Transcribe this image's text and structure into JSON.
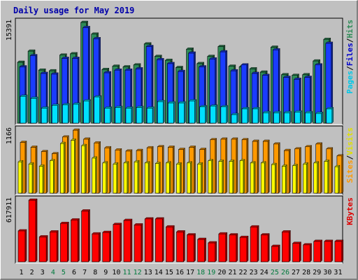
{
  "chart_data": {
    "type": "bar",
    "title": "Daily usage for May 2019",
    "days": [
      "1",
      "2",
      "3",
      "4",
      "5",
      "6",
      "7",
      "8",
      "9",
      "10",
      "11",
      "12",
      "13",
      "14",
      "15",
      "16",
      "17",
      "18",
      "19",
      "20",
      "21",
      "22",
      "23",
      "24",
      "25",
      "26",
      "27",
      "28",
      "29",
      "30",
      "31"
    ],
    "weekend_days": [
      "4",
      "5",
      "11",
      "12",
      "18",
      "19",
      "25",
      "26"
    ],
    "colors": {
      "title": "#0000aa",
      "hits": "#2e8b57",
      "files": "#1a3cff",
      "pages": "#00e0ff",
      "visits": "#ffff00",
      "sites": "#ff9900",
      "kbytes": "#ff0000",
      "weekend_label": "#007a3d",
      "weekday_label": "#000000"
    },
    "panels": [
      {
        "name": "hits-files-pages",
        "max_label": "15391",
        "ylim": [
          0,
          15391
        ],
        "legend": [
          {
            "text": "Pages",
            "color": "#00c8e8"
          },
          {
            "text": "/",
            "color": "#000000"
          },
          {
            "text": "Files",
            "color": "#0000cc"
          },
          {
            "text": "/",
            "color": "#000000"
          },
          {
            "text": "Hits",
            "color": "#2e8b57"
          }
        ],
        "series": [
          {
            "name": "Hits",
            "values": [
              9300,
              11000,
              8100,
              8000,
              10400,
              10600,
              15391,
              13600,
              8200,
              8700,
              8600,
              8900,
              12100,
              10200,
              9600,
              8500,
              11300,
              9100,
              10200,
              11700,
              8700,
              8600,
              8300,
              7800,
              11600,
              7400,
              7300,
              7400,
              9500,
              12800,
              0
            ]
          },
          {
            "name": "Files",
            "values": [
              8600,
              10300,
              7600,
              7500,
              9900,
              9900,
              14600,
              12900,
              7700,
              8100,
              8100,
              8300,
              11700,
              9700,
              9100,
              7900,
              10700,
              8600,
              9800,
              10900,
              8000,
              8900,
              7600,
              7300,
              11200,
              7000,
              6700,
              7000,
              8900,
              12200,
              0
            ]
          },
          {
            "name": "Pages",
            "values": [
              4100,
              3800,
              2300,
              2700,
              2800,
              2900,
              3400,
              4000,
              2300,
              2400,
              2300,
              2400,
              2300,
              3300,
              3100,
              3100,
              3400,
              2500,
              2600,
              2500,
              1300,
              2200,
              2200,
              1600,
              1600,
              1600,
              1700,
              1600,
              1500,
              2200,
              0
            ]
          }
        ]
      },
      {
        "name": "visits-sites",
        "max_label": "1166",
        "ylim": [
          0,
          1166
        ],
        "legend": [
          {
            "text": "Sites",
            "color": "#ff9900"
          },
          {
            "text": "/",
            "color": "#000000"
          },
          {
            "text": "Visits",
            "color": "#e0e000"
          }
        ],
        "series": [
          {
            "name": "Sites",
            "values": [
              940,
              850,
              770,
              730,
              1040,
              1166,
              1000,
              930,
              840,
              800,
              780,
              790,
              840,
              860,
              850,
              810,
              850,
              810,
              990,
              1000,
              1000,
              990,
              960,
              960,
              910,
              790,
              820,
              860,
              910,
              820,
              690
            ]
          },
          {
            "name": "Visits",
            "values": [
              580,
              540,
              500,
              600,
              920,
              980,
              880,
              650,
              560,
              540,
              560,
              580,
              560,
              550,
              560,
              540,
              560,
              540,
              600,
              590,
              590,
              600,
              560,
              560,
              530,
              500,
              510,
              540,
              560,
              590,
              490
            ]
          }
        ]
      },
      {
        "name": "kbytes",
        "max_label": "617911",
        "ylim": [
          0,
          617911
        ],
        "legend": [
          {
            "text": "KBytes",
            "color": "#dd0000"
          }
        ],
        "series": [
          {
            "name": "KBytes",
            "values": [
              310000,
              617911,
              250000,
              300000,
              385000,
              420000,
              510000,
              280000,
              295000,
              375000,
              415000,
              370000,
              430000,
              430000,
              350000,
              300000,
              270000,
              225000,
              190000,
              280000,
              270000,
              245000,
              350000,
              270000,
              155000,
              300000,
              185000,
              170000,
              205000,
              205000,
              205000
            ]
          }
        ]
      }
    ]
  }
}
